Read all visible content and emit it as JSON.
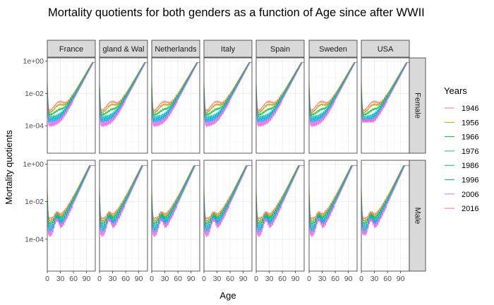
{
  "chart_data": {
    "type": "line",
    "title": "Mortality quotients for both genders as a function of Age since after WWII",
    "xlabel": "Age",
    "ylabel": "Mortality quotients",
    "x_ticks": [
      "0",
      "30",
      "60",
      "90"
    ],
    "x_range": [
      0,
      110
    ],
    "y_scale": "log10",
    "y_ticks": [
      "1e+00",
      "1e-02",
      "1e-04"
    ],
    "y_range": [
      2e-06,
      1.6
    ],
    "facet_cols": [
      "France",
      "England & Wales",
      "Netherlands",
      "Italy",
      "Spain",
      "Sweden",
      "USA"
    ],
    "facet_col_labels_shown": [
      "France",
      "gland & Wal",
      "Netherlands",
      "Italy",
      "Spain",
      "Sweden",
      "USA"
    ],
    "facet_rows": [
      "Female",
      "Male"
    ],
    "legend_title": "Years",
    "legend_position": "right",
    "grid": true,
    "series": [
      {
        "name": "1946",
        "color": "#F8766D"
      },
      {
        "name": "1956",
        "color": "#B79F00"
      },
      {
        "name": "1966",
        "color": "#00BA38"
      },
      {
        "name": "1976",
        "color": "#00BFC4"
      },
      {
        "name": "1986",
        "color": "#00B4A0"
      },
      {
        "name": "1996",
        "color": "#00A9FF"
      },
      {
        "name": "2006",
        "color": "#C77CFF"
      },
      {
        "name": "2016",
        "color": "#F564E3"
      }
    ],
    "approx_values_female_1946": {
      "age": [
        0,
        1,
        5,
        10,
        20,
        40,
        60,
        80,
        100,
        110
      ],
      "q": [
        0.05,
        0.006,
        0.0012,
        0.001,
        0.0025,
        0.004,
        0.015,
        0.1,
        0.5,
        0.8
      ]
    },
    "approx_values_female_2016": {
      "age": [
        0,
        1,
        5,
        10,
        20,
        40,
        60,
        80,
        100,
        110
      ],
      "q": [
        0.003,
        0.0003,
        6e-05,
        5e-05,
        0.0002,
        0.0007,
        0.005,
        0.04,
        0.4,
        0.7
      ]
    },
    "approx_values_male_1946": {
      "age": [
        0,
        1,
        5,
        10,
        20,
        40,
        60,
        80,
        100,
        110
      ],
      "q": [
        0.06,
        0.007,
        0.0015,
        0.0012,
        0.004,
        0.006,
        0.025,
        0.12,
        0.5,
        0.8
      ]
    },
    "approx_values_male_2016": {
      "age": [
        0,
        1,
        5,
        10,
        20,
        40,
        60,
        80,
        100,
        110
      ],
      "q": [
        0.0035,
        0.0004,
        0.0001,
        0.0001,
        0.0006,
        0.0015,
        0.009,
        0.06,
        0.42,
        0.72
      ]
    }
  }
}
